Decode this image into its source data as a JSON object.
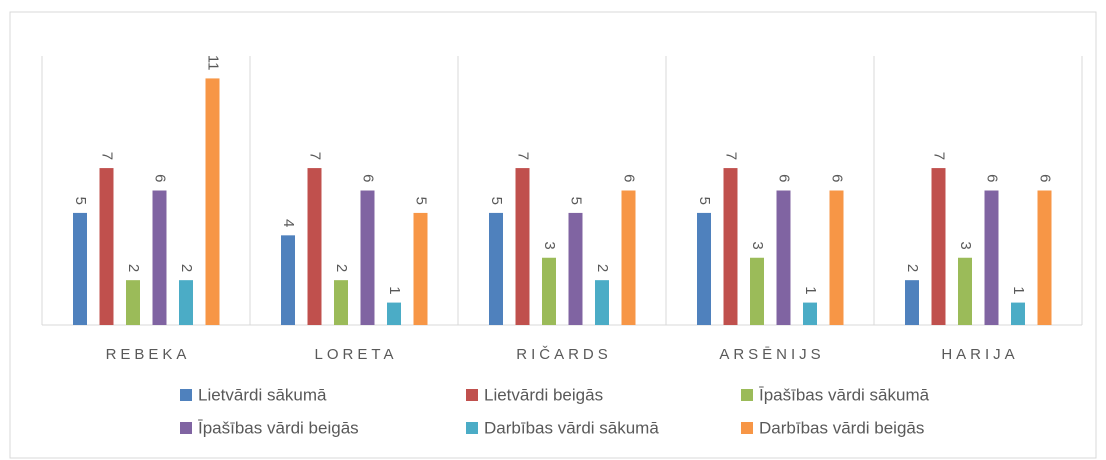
{
  "chart_data": {
    "type": "bar",
    "categories": [
      "REBEKA",
      "LORETA",
      "RIČARDS",
      "ARSĒNIJS",
      "HARIJA"
    ],
    "series": [
      {
        "name": "Lietvārdi sākumā",
        "color": "#4f81bd",
        "values": [
          5,
          4,
          5,
          5,
          2
        ]
      },
      {
        "name": "Lietvārdi beigās",
        "color": "#c0504d",
        "values": [
          7,
          7,
          7,
          7,
          7
        ]
      },
      {
        "name": "Īpašības vārdi sākumā",
        "color": "#9bbb59",
        "values": [
          2,
          2,
          3,
          3,
          3
        ]
      },
      {
        "name": "Īpašības vārdi beigās",
        "color": "#8064a2",
        "values": [
          6,
          6,
          5,
          6,
          6
        ]
      },
      {
        "name": "Darbības vārdi sākumā",
        "color": "#4bacc6",
        "values": [
          2,
          1,
          2,
          1,
          1
        ]
      },
      {
        "name": "Darbības vārdi beigās",
        "color": "#f79646",
        "values": [
          11,
          5,
          6,
          6,
          6
        ]
      }
    ],
    "ylim": [
      0,
      12
    ],
    "grid": false
  }
}
